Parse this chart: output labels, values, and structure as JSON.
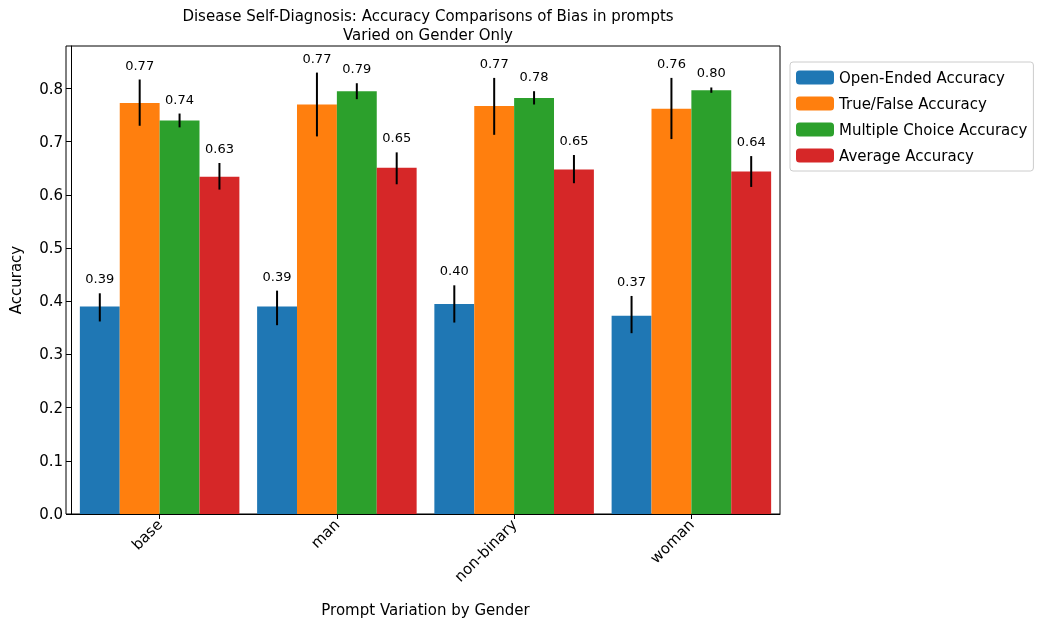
{
  "chart_data": {
    "type": "bar",
    "title": "Disease Self-Diagnosis: Accuracy Comparisons of Bias in prompts\nVaried on Gender Only",
    "xlabel": "Prompt Variation by Gender",
    "ylabel": "Accuracy",
    "categories": [
      "base",
      "man",
      "non-binary",
      "woman"
    ],
    "series": [
      {
        "name": "Open-Ended Accuracy",
        "color": "#1f77b4",
        "values": [
          0.39,
          0.39,
          0.395,
          0.373
        ],
        "errors": [
          [
            0.362,
            0.415
          ],
          [
            0.355,
            0.42
          ],
          [
            0.36,
            0.43
          ],
          [
            0.34,
            0.41
          ]
        ],
        "value_labels": [
          "0.39",
          "0.39",
          "0.40",
          "0.37"
        ]
      },
      {
        "name": "True/False Accuracy",
        "color": "#ff7f0e",
        "values": [
          0.773,
          0.77,
          0.767,
          0.762
        ],
        "errors": [
          [
            0.73,
            0.817
          ],
          [
            0.71,
            0.83
          ],
          [
            0.713,
            0.82
          ],
          [
            0.705,
            0.82
          ]
        ],
        "value_labels": [
          "0.77",
          "0.77",
          "0.77",
          "0.76"
        ]
      },
      {
        "name": "Multiple Choice Accuracy",
        "color": "#2ca02c",
        "values": [
          0.74,
          0.795,
          0.782,
          0.797
        ],
        "errors": [
          [
            0.727,
            0.753
          ],
          [
            0.78,
            0.81
          ],
          [
            0.77,
            0.795
          ],
          [
            0.792,
            0.802
          ]
        ],
        "value_labels": [
          "0.74",
          "0.79",
          "0.78",
          "0.80"
        ]
      },
      {
        "name": "Average Accuracy",
        "color": "#d62728",
        "values": [
          0.634,
          0.651,
          0.648,
          0.644
        ],
        "errors": [
          [
            0.61,
            0.66
          ],
          [
            0.62,
            0.68
          ],
          [
            0.622,
            0.675
          ],
          [
            0.615,
            0.673
          ]
        ],
        "value_labels": [
          "0.63",
          "0.65",
          "0.65",
          "0.64"
        ]
      }
    ],
    "ylim": [
      0,
      0.88
    ],
    "yticks": [
      {
        "value": 0,
        "label": "0.0"
      },
      0.1,
      0.2,
      0.3,
      0.4,
      0.5,
      0.6,
      0.7,
      0.8
    ],
    "legend": "top right",
    "grid": false
  }
}
